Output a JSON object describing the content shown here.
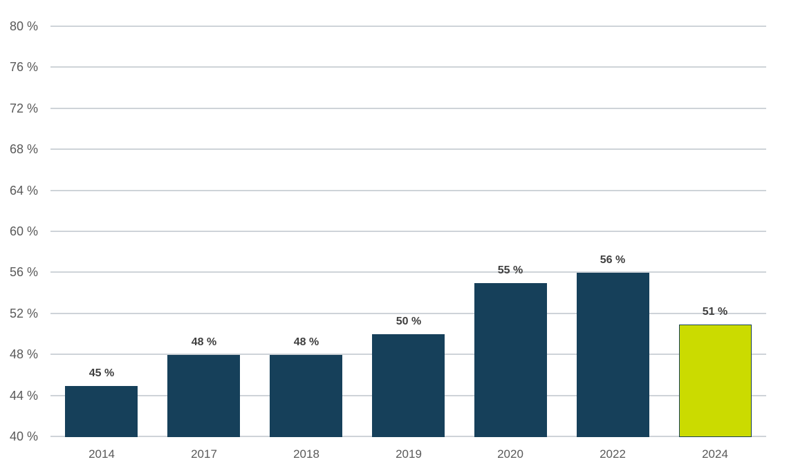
{
  "chart_data": {
    "type": "bar",
    "categories": [
      "2014",
      "2017",
      "2018",
      "2019",
      "2020",
      "2022",
      "2024"
    ],
    "values": [
      45,
      48,
      48,
      50,
      55,
      56,
      51
    ],
    "value_labels": [
      "45 %",
      "48 %",
      "48 %",
      "50 %",
      "55 %",
      "56 %",
      "51 %"
    ],
    "ytick_labels": [
      "80 %",
      "76 %",
      "72 %",
      "68 %",
      "64 %",
      "60 %",
      "56 %",
      "52 %",
      "48 %",
      "44 %",
      "40 %"
    ],
    "yticks": [
      80,
      76,
      72,
      68,
      64,
      60,
      56,
      52,
      48,
      44,
      40
    ],
    "ylim": [
      40,
      80
    ],
    "ytick_step": 4,
    "unit_suffix": " %",
    "grid": "horizontal",
    "legend": "none",
    "highlight_index": 6,
    "colors": {
      "bar": "#16405a",
      "highlight_fill": "#cbdb00",
      "highlight_border": "#16405a",
      "gridline": "#ced3d8",
      "axis_label": "#595959",
      "value_label": "#3f3f3f",
      "background": "#ffffff"
    }
  }
}
